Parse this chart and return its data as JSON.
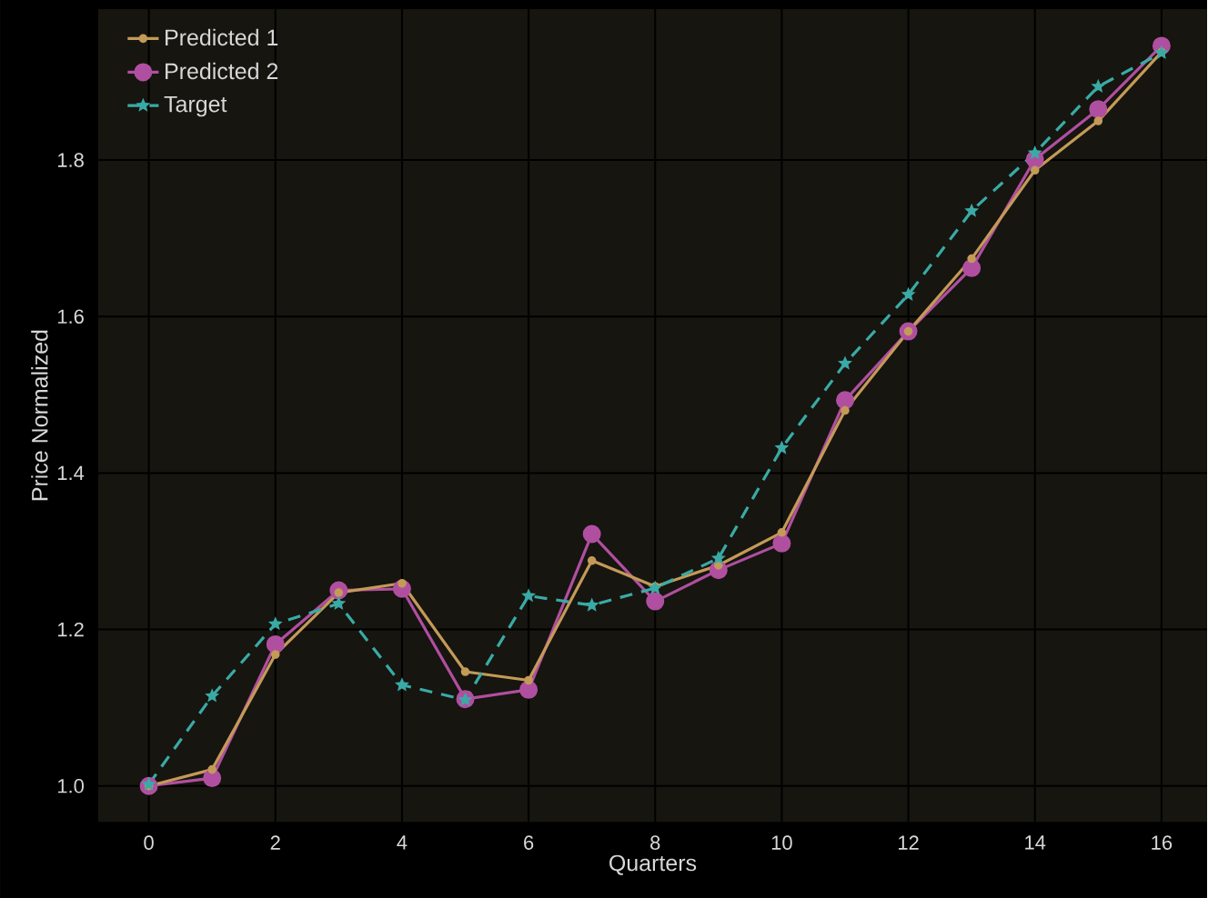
{
  "chart_data": {
    "type": "line",
    "xlabel": "Quarters",
    "ylabel": "Price Normalized",
    "x": [
      0,
      1,
      2,
      3,
      4,
      5,
      6,
      7,
      8,
      9,
      10,
      11,
      12,
      13,
      14,
      15,
      16
    ],
    "series": [
      {
        "name": "Predicted 1",
        "color": "#c49a58",
        "marker": "circle",
        "line_style": "solid",
        "values": [
          1.0,
          1.021,
          1.168,
          1.247,
          1.259,
          1.146,
          1.135,
          1.288,
          1.255,
          1.282,
          1.324,
          1.48,
          1.581,
          1.674,
          1.787,
          1.85,
          1.938
        ]
      },
      {
        "name": "Predicted 2",
        "color": "#b04fa0",
        "marker": "circle",
        "line_style": "solid",
        "values": [
          1.0,
          1.01,
          1.181,
          1.25,
          1.252,
          1.111,
          1.123,
          1.322,
          1.236,
          1.276,
          1.31,
          1.493,
          1.581,
          1.662,
          1.801,
          1.865,
          1.946
        ]
      },
      {
        "name": "Target",
        "color": "#3aaaa6",
        "marker": "star",
        "line_style": "dashed",
        "values": [
          1.002,
          1.115,
          1.207,
          1.233,
          1.129,
          1.11,
          1.243,
          1.231,
          1.253,
          1.291,
          1.432,
          1.54,
          1.628,
          1.735,
          1.809,
          1.894,
          1.937
        ]
      }
    ],
    "xlim": [
      -0.8,
      16.72
    ],
    "ylim": [
      0.954,
      1.993
    ],
    "xticks": [
      0,
      2,
      4,
      6,
      8,
      10,
      12,
      14,
      16
    ],
    "yticks": [
      {
        "value": 1.0,
        "label": "1.0"
      },
      {
        "value": 1.2,
        "label": "1.2"
      },
      {
        "value": 1.4,
        "label": "1.4"
      },
      {
        "value": 1.6,
        "label": "1.6"
      },
      {
        "value": 1.8,
        "label": "1.8"
      }
    ],
    "grid": true,
    "legend": "top left"
  }
}
